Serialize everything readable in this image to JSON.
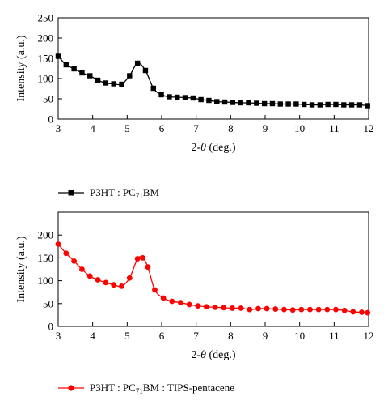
{
  "chart_data": [
    {
      "type": "line",
      "xlabel_prefix": "2-",
      "xlabel_symbol": "θ",
      "xlabel_suffix": " (deg.)",
      "ylabel": "Intensity (a.u.)",
      "xlim": [
        3,
        12
      ],
      "ylim": [
        0,
        250
      ],
      "xticks": [
        "3",
        "4",
        "5",
        "6",
        "7",
        "8",
        "9",
        "10",
        "11",
        "12"
      ],
      "yticks": [
        "0",
        "50",
        "100",
        "150",
        "200",
        "250"
      ],
      "grid": false,
      "legend_position": "below",
      "color": "#000000",
      "marker": "square",
      "series": [
        {
          "name": "P3HT : PC71BM",
          "legend_main": "P3HT : PC",
          "legend_sub": "71",
          "legend_end": "BM",
          "x": [
            3.0,
            3.23,
            3.46,
            3.69,
            3.92,
            4.15,
            4.38,
            4.61,
            4.84,
            5.07,
            5.3,
            5.53,
            5.76,
            5.99,
            6.22,
            6.45,
            6.68,
            6.91,
            7.14,
            7.37,
            7.6,
            7.83,
            8.06,
            8.29,
            8.52,
            8.75,
            8.98,
            9.21,
            9.44,
            9.67,
            9.9,
            10.13,
            10.36,
            10.59,
            10.82,
            11.05,
            11.28,
            11.51,
            11.74,
            11.97
          ],
          "values": [
            155,
            134,
            124,
            114,
            107,
            96,
            89,
            87,
            86,
            107,
            138,
            120,
            76,
            60,
            55,
            54,
            53,
            52,
            48,
            46,
            43,
            42,
            41,
            40,
            40,
            39,
            38,
            38,
            37,
            37,
            37,
            36,
            35,
            35,
            36,
            36,
            35,
            35,
            35,
            33
          ]
        }
      ]
    },
    {
      "type": "line",
      "xlabel_prefix": "2-",
      "xlabel_symbol": "θ",
      "xlabel_suffix": " (deg.)",
      "ylabel": "Intensity (a.u.)",
      "xlim": [
        3,
        12
      ],
      "ylim": [
        0,
        250
      ],
      "xticks": [
        "3",
        "4",
        "5",
        "6",
        "7",
        "8",
        "9",
        "10",
        "11",
        "12"
      ],
      "yticks": [
        "0",
        "50",
        "100",
        "150",
        "200"
      ],
      "grid": false,
      "legend_position": "below",
      "color": "#ff0000",
      "marker": "circle",
      "series": [
        {
          "name": "P3HT : PC71BM : TIPS-pentacene",
          "legend_main": "P3HT : PC",
          "legend_sub": "71",
          "legend_end": "BM : TIPS-pentacene",
          "x": [
            3.0,
            3.23,
            3.46,
            3.69,
            3.92,
            4.15,
            4.38,
            4.61,
            4.84,
            5.07,
            5.3,
            5.45,
            5.6,
            5.8,
            6.05,
            6.3,
            6.55,
            6.8,
            7.05,
            7.3,
            7.55,
            7.8,
            8.05,
            8.3,
            8.55,
            8.8,
            9.05,
            9.3,
            9.55,
            9.8,
            10.05,
            10.3,
            10.55,
            10.8,
            11.05,
            11.3,
            11.55,
            11.8,
            11.97
          ],
          "values": [
            180,
            160,
            143,
            125,
            110,
            102,
            96,
            91,
            88,
            106,
            148,
            150,
            130,
            80,
            62,
            55,
            52,
            48,
            45,
            43,
            42,
            41,
            40,
            40,
            37,
            39,
            39,
            38,
            37,
            36,
            37,
            37,
            37,
            37,
            37,
            35,
            32,
            31,
            30
          ]
        }
      ]
    }
  ]
}
